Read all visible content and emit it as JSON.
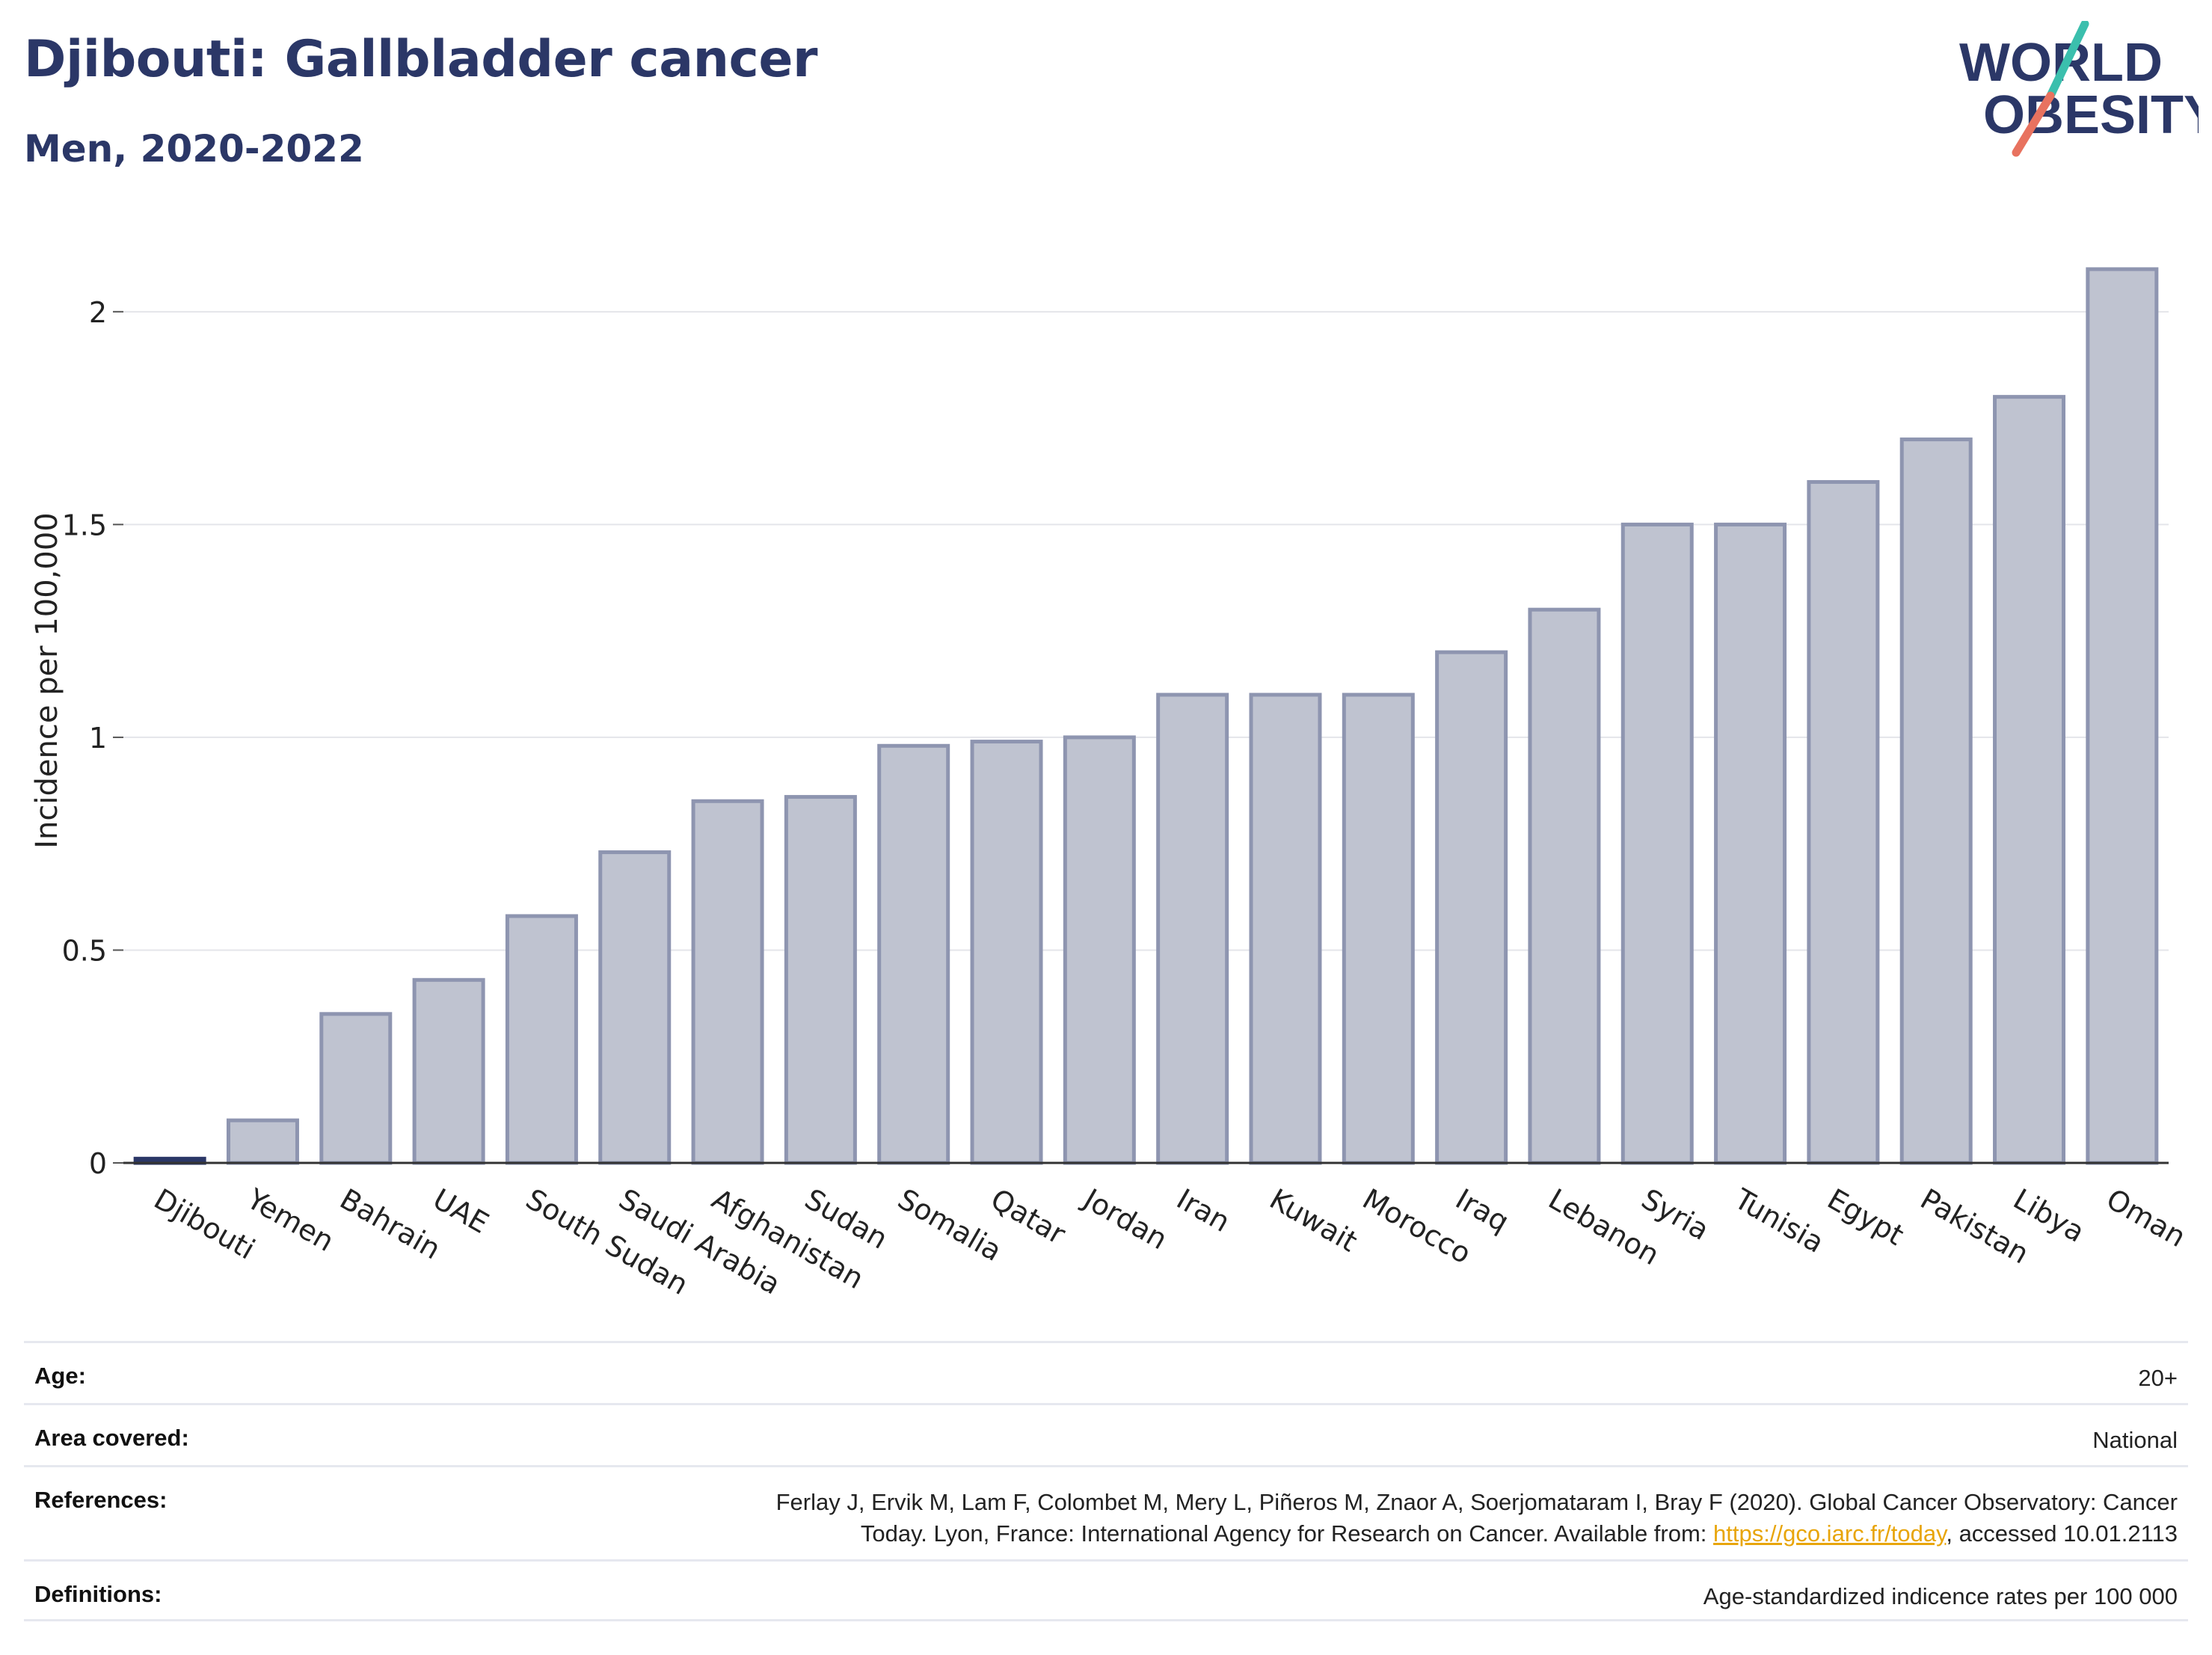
{
  "header": {
    "title": "Djibouti: Gallbladder cancer",
    "subtitle": "Men, 2020-2022"
  },
  "logo": {
    "line1": "WORLD",
    "line2": "OBESITY",
    "accent_colors": [
      "#3bbfad",
      "#e8725f"
    ],
    "text_color": "#2b3767"
  },
  "colors": {
    "bar_fill": "#bfc3d0",
    "bar_stroke": "#8e95b0",
    "highlight_fill": "#2b3767",
    "grid": "#e4e5ea",
    "axis": "#333333"
  },
  "chart_data": {
    "type": "bar",
    "categories": [
      "Djibouti",
      "Yemen",
      "Bahrain",
      "UAE",
      "South Sudan",
      "Saudi Arabia",
      "Afghanistan",
      "Sudan",
      "Somalia",
      "Qatar",
      "Jordan",
      "Iran",
      "Kuwait",
      "Morocco",
      "Iraq",
      "Lebanon",
      "Syria",
      "Tunisia",
      "Egypt",
      "Pakistan",
      "Libya",
      "Oman"
    ],
    "values": [
      0.01,
      0.1,
      0.35,
      0.43,
      0.58,
      0.73,
      0.85,
      0.86,
      0.98,
      0.99,
      1.0,
      1.1,
      1.1,
      1.1,
      1.2,
      1.3,
      1.5,
      1.5,
      1.6,
      1.7,
      1.8,
      2.1
    ],
    "highlight": "Djibouti",
    "ylabel": "Incidence per 100,000",
    "ylim": [
      0,
      2.2
    ],
    "yticks": [
      0,
      0.5,
      1,
      1.5,
      2
    ],
    "ytick_labels": [
      "0",
      "0.5",
      "1",
      "1.5",
      "2"
    ],
    "grid": true
  },
  "meta": {
    "age_label": "Age:",
    "age_value": "20+",
    "area_label": "Area covered:",
    "area_value": "National",
    "references_label": "References:",
    "references_line1": "Ferlay J, Ervik M, Lam F, Colombet M, Mery L, Piñeros M, Znaor A, Soerjomataram I, Bray F (2020). Global Cancer Observatory: Cancer",
    "references_line2_pre": "Today. Lyon, France: International Agency for Research on Cancer. Available from: ",
    "references_link": "https://gco.iarc.fr/today",
    "references_line2_post": ", accessed 10.01.2113",
    "definitions_label": "Definitions:",
    "definitions_value": "Age-standardized indicence rates per 100 000"
  }
}
